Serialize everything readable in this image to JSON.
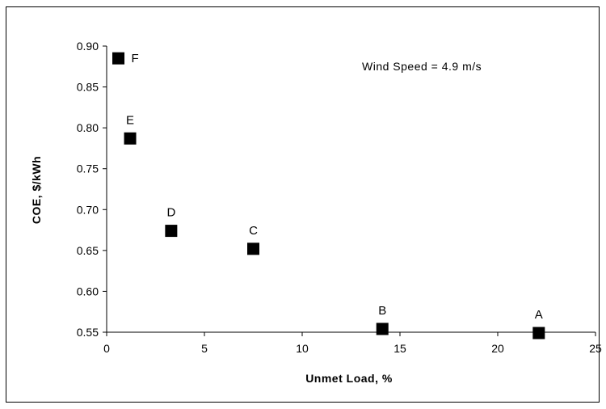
{
  "chart_data": {
    "type": "scatter",
    "title": "",
    "xlabel": "Unmet Load, %",
    "ylabel": "COE, $/kWh",
    "xlim": [
      0,
      25
    ],
    "ylim": [
      0.55,
      0.9
    ],
    "x_ticks": [
      "0",
      "5",
      "10",
      "15",
      "20",
      "25"
    ],
    "y_ticks": [
      "0.55",
      "0.60",
      "0.65",
      "0.70",
      "0.75",
      "0.80",
      "0.85",
      "0.90"
    ],
    "grid": false,
    "legend": "none",
    "annotation": "Wind Speed = 4.9 m/s",
    "marker": "square",
    "marker_color": "#000000",
    "points": [
      {
        "label": "A",
        "x": 22.1,
        "y": 0.549
      },
      {
        "label": "B",
        "x": 14.1,
        "y": 0.554
      },
      {
        "label": "C",
        "x": 7.5,
        "y": 0.652
      },
      {
        "label": "D",
        "x": 3.3,
        "y": 0.674
      },
      {
        "label": "E",
        "x": 1.2,
        "y": 0.787
      },
      {
        "label": "F",
        "x": 0.6,
        "y": 0.885
      }
    ]
  }
}
